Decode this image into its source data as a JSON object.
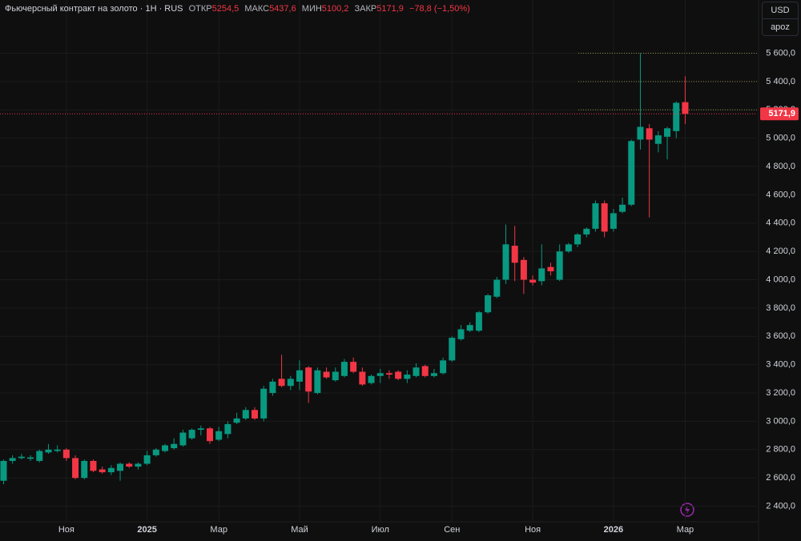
{
  "header": {
    "title": "Фьючерсный контракт на золото · 1Н · RUS",
    "open_key": "ОТКР",
    "open": "5254,5",
    "high_key": "МАКС",
    "high": "5437,6",
    "low_key": "МИН",
    "low": "5100,2",
    "close_key": "ЗАКР",
    "close": "5171,9",
    "change": "−78,8 (−1,50%)"
  },
  "toolbar": {
    "currency": "USD",
    "unit": "apoz"
  },
  "chart_data": {
    "type": "candlestick",
    "up_color": "#089981",
    "down_color": "#f23645",
    "grid": true,
    "open": [
      2580,
      2720,
      2740,
      2735,
      2720,
      2780,
      2790,
      2800,
      2740,
      2600,
      2720,
      2660,
      2640,
      2650,
      2700,
      2680,
      2700,
      2760,
      2790,
      2810,
      2830,
      2880,
      2940,
      2950,
      2870,
      2910,
      2990,
      3020,
      3080,
      3020,
      3200,
      3300,
      3250,
      3280,
      3380,
      3200,
      3350,
      3290,
      3320,
      3420,
      3350,
      3270,
      3320,
      3340,
      3350,
      3300,
      3320,
      3390,
      3320,
      3340,
      3430,
      3580,
      3640,
      3640,
      3770,
      3880,
      4000,
      4240,
      4140,
      4000,
      3990,
      4090,
      4000,
      4200,
      4250,
      4320,
      4360,
      4540,
      4360,
      4480,
      4530,
      4990,
      5070,
      4960,
      5010,
      5050,
      5254.5
    ],
    "high": [
      2730,
      2760,
      2770,
      2760,
      2800,
      2840,
      2830,
      2810,
      2760,
      2730,
      2730,
      2680,
      2690,
      2710,
      2710,
      2710,
      2790,
      2810,
      2840,
      2880,
      2940,
      2950,
      2970,
      2960,
      2960,
      3000,
      3060,
      3100,
      3100,
      3250,
      3300,
      3470,
      3320,
      3430,
      3390,
      3380,
      3380,
      3380,
      3440,
      3450,
      3380,
      3330,
      3370,
      3360,
      3360,
      3360,
      3410,
      3400,
      3370,
      3450,
      3600,
      3680,
      3700,
      3780,
      3900,
      4020,
      4390,
      4380,
      4160,
      4030,
      4250,
      4120,
      4250,
      4260,
      4330,
      4370,
      4560,
      4560,
      4500,
      4580,
      4990,
      5600,
      5100,
      5050,
      5080,
      5260,
      5437.6
    ],
    "low": [
      2555,
      2700,
      2730,
      2720,
      2710,
      2770,
      2780,
      2720,
      2590,
      2590,
      2640,
      2630,
      2620,
      2580,
      2670,
      2660,
      2690,
      2750,
      2780,
      2800,
      2820,
      2870,
      2900,
      2840,
      2860,
      2880,
      2980,
      3010,
      3010,
      3000,
      3180,
      3240,
      3220,
      3220,
      3130,
      3190,
      3300,
      3280,
      3310,
      3340,
      3250,
      3260,
      3270,
      3300,
      3290,
      3270,
      3310,
      3310,
      3310,
      3330,
      3420,
      3570,
      3630,
      3630,
      3760,
      3870,
      3970,
      3990,
      3900,
      3960,
      3960,
      4030,
      3990,
      4190,
      4230,
      4300,
      4340,
      4300,
      4340,
      4470,
      4520,
      4920,
      4440,
      4900,
      4850,
      5000,
      5100.2
    ],
    "close": [
      2720,
      2740,
      2750,
      2745,
      2790,
      2800,
      2800,
      2740,
      2600,
      2720,
      2650,
      2640,
      2670,
      2700,
      2680,
      2700,
      2760,
      2800,
      2830,
      2840,
      2920,
      2940,
      2950,
      2860,
      2930,
      2980,
      3020,
      3080,
      3020,
      3230,
      3280,
      3250,
      3300,
      3360,
      3210,
      3360,
      3310,
      3350,
      3420,
      3350,
      3260,
      3320,
      3340,
      3330,
      3300,
      3330,
      3380,
      3320,
      3340,
      3430,
      3590,
      3650,
      3680,
      3770,
      3890,
      4000,
      4250,
      4120,
      4000,
      3980,
      4080,
      4060,
      4200,
      4250,
      4320,
      4360,
      4540,
      4340,
      4470,
      4530,
      4980,
      5080,
      4990,
      5020,
      5070,
      5250,
      5171.9
    ],
    "last_label": "5171,9",
    "xlim": [
      -0.4,
      84
    ],
    "xticks": [
      {
        "value": 7,
        "label": "Ноя"
      },
      {
        "value": 16,
        "label": "2025"
      },
      {
        "value": 24,
        "label": "Мар"
      },
      {
        "value": 33,
        "label": "Май"
      },
      {
        "value": 42,
        "label": "Июл"
      },
      {
        "value": 50,
        "label": "Сен"
      },
      {
        "value": 59,
        "label": "Ноя"
      },
      {
        "value": 68,
        "label": "2026"
      },
      {
        "value": 76,
        "label": "Мар"
      }
    ],
    "ylim": [
      2290,
      5750
    ],
    "yticks": [
      {
        "value": 2400,
        "label": "2 400,0"
      },
      {
        "value": 2600,
        "label": "2 600,0"
      },
      {
        "value": 2800,
        "label": "2 800,0"
      },
      {
        "value": 3000,
        "label": "3 000,0"
      },
      {
        "value": 3200,
        "label": "3 200,0"
      },
      {
        "value": 3400,
        "label": "3 400,0"
      },
      {
        "value": 3600,
        "label": "3 600,0"
      },
      {
        "value": 3800,
        "label": "3 800,0"
      },
      {
        "value": 4000,
        "label": "4 000,0"
      },
      {
        "value": 4200,
        "label": "4 200,0"
      },
      {
        "value": 4400,
        "label": "4 400,0"
      },
      {
        "value": 4600,
        "label": "4 600,0"
      },
      {
        "value": 4800,
        "label": "4 800,0"
      },
      {
        "value": 5000,
        "label": "5 000,0"
      },
      {
        "value": 5200,
        "label": "5 200,0"
      },
      {
        "value": 5400,
        "label": "5 400,0"
      },
      {
        "value": 5600,
        "label": "5 600,0"
      }
    ]
  }
}
